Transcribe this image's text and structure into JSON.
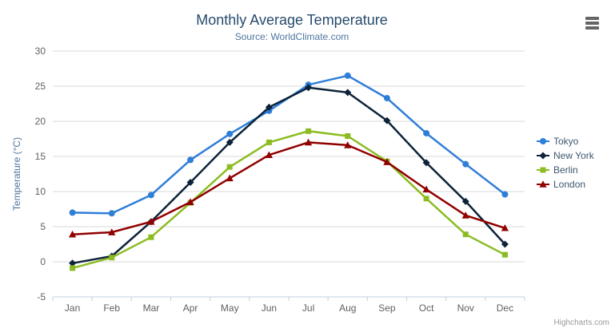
{
  "credits": "Highcharts.com",
  "export_menu": {
    "icon": "hamburger-menu-icon"
  },
  "colors": {
    "title": "#274b6d",
    "subtitle": "#4d759e",
    "axis_labels": "#606060",
    "axis_title": "#4d759e",
    "gridline": "#D8D8D8",
    "axis_line": "#C0D0E0",
    "legend_text": "#3E576F",
    "credits_text": "#999999",
    "menu_icon": "#666666"
  },
  "chart_data": {
    "type": "line",
    "title": "Monthly Average Temperature",
    "subtitle": "Source: WorldClimate.com",
    "categories": [
      "Jan",
      "Feb",
      "Mar",
      "Apr",
      "May",
      "Jun",
      "Jul",
      "Aug",
      "Sep",
      "Oct",
      "Nov",
      "Dec"
    ],
    "xlabel": "",
    "ylabel": "Temperature (°C)",
    "ylim": [
      -5,
      30
    ],
    "ytick_step": 5,
    "yticks": [
      -5,
      0,
      5,
      10,
      15,
      20,
      25,
      30
    ],
    "grid": true,
    "legend_position": "right",
    "series": [
      {
        "name": "Tokyo",
        "color": "#2f7ed8",
        "marker": "circle",
        "values": [
          7.0,
          6.9,
          9.5,
          14.5,
          18.2,
          21.5,
          25.2,
          26.5,
          23.3,
          18.3,
          13.9,
          9.6
        ]
      },
      {
        "name": "New York",
        "color": "#0d233a",
        "marker": "diamond",
        "values": [
          -0.2,
          0.8,
          5.7,
          11.3,
          17.0,
          22.0,
          24.8,
          24.1,
          20.1,
          14.1,
          8.6,
          2.5
        ]
      },
      {
        "name": "Berlin",
        "color": "#8bbc21",
        "marker": "square",
        "values": [
          -0.9,
          0.6,
          3.5,
          8.4,
          13.5,
          17.0,
          18.6,
          17.9,
          14.3,
          9.0,
          3.9,
          1.0
        ]
      },
      {
        "name": "London",
        "color": "#910000",
        "marker": "triangle",
        "values": [
          3.9,
          4.2,
          5.7,
          8.5,
          11.9,
          15.2,
          17.0,
          16.6,
          14.2,
          10.3,
          6.6,
          4.8
        ]
      }
    ]
  }
}
